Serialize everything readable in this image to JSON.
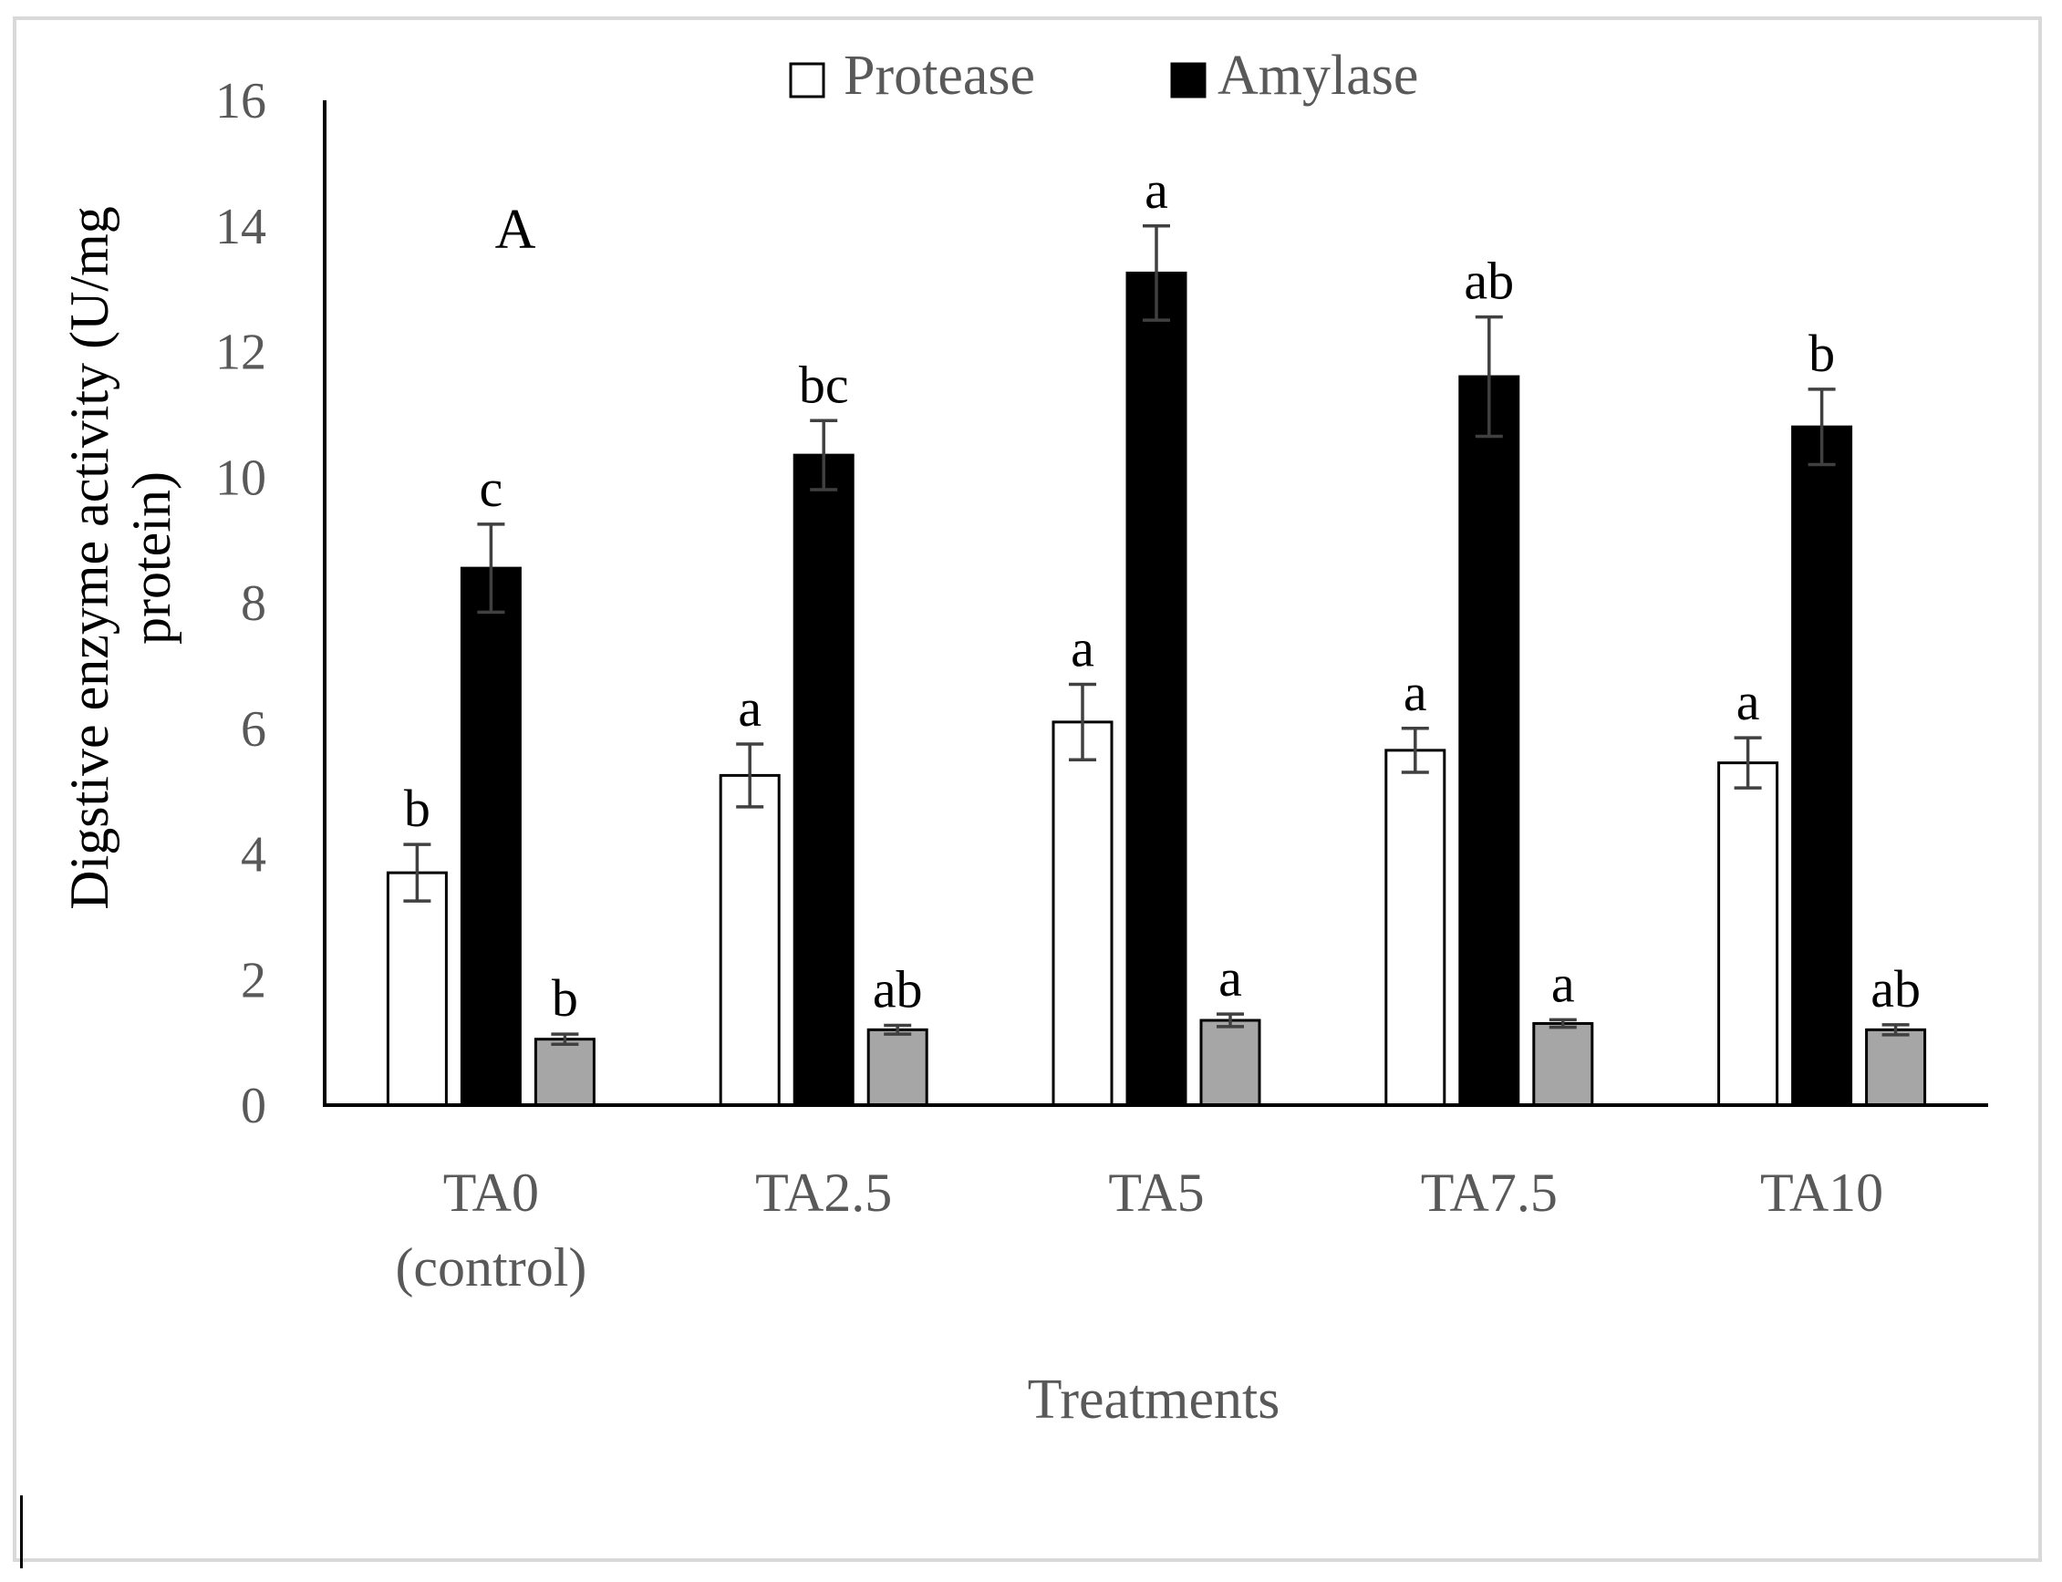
{
  "chart_data": {
    "type": "bar",
    "panel_label": "A",
    "categories": [
      {
        "line1": "TA0",
        "line2": "(control)"
      },
      {
        "line1": "TA2.5",
        "line2": ""
      },
      {
        "line1": "TA5",
        "line2": ""
      },
      {
        "line1": "TA7.5",
        "line2": ""
      },
      {
        "line1": "TA10",
        "line2": ""
      }
    ],
    "xlabel": "Treatments",
    "ylabel_lines": [
      "Digstive enzyme activity (U/mg",
      "protein)"
    ],
    "ylim": [
      0,
      16
    ],
    "yticks": [
      0,
      2,
      4,
      6,
      8,
      10,
      12,
      14,
      16
    ],
    "legend": {
      "placement": "top-center"
    },
    "series": [
      {
        "name": "Protease",
        "color": "#ffffff",
        "in_legend": true,
        "values": [
          3.7,
          5.25,
          6.1,
          5.65,
          5.45
        ],
        "errors": [
          0.45,
          0.5,
          0.6,
          0.35,
          0.4
        ],
        "letters": [
          "b",
          "a",
          "a",
          "a",
          "a"
        ]
      },
      {
        "name": "Amylase",
        "color": "#000000",
        "in_legend": true,
        "values": [
          8.55,
          10.35,
          13.25,
          11.6,
          10.8
        ],
        "errors": [
          0.7,
          0.55,
          0.75,
          0.95,
          0.6
        ],
        "letters": [
          "c",
          "bc",
          "a",
          "ab",
          "b"
        ]
      },
      {
        "color": "#a6a6a6",
        "in_legend": false,
        "values": [
          1.05,
          1.2,
          1.35,
          1.3,
          1.2
        ],
        "errors": [
          0.08,
          0.07,
          0.1,
          0.06,
          0.08
        ],
        "letters": [
          "b",
          "ab",
          "a",
          "a",
          "ab"
        ]
      }
    ],
    "axis_color": "#000000",
    "text_color": "#595959",
    "errorbar_color": "#404040"
  }
}
